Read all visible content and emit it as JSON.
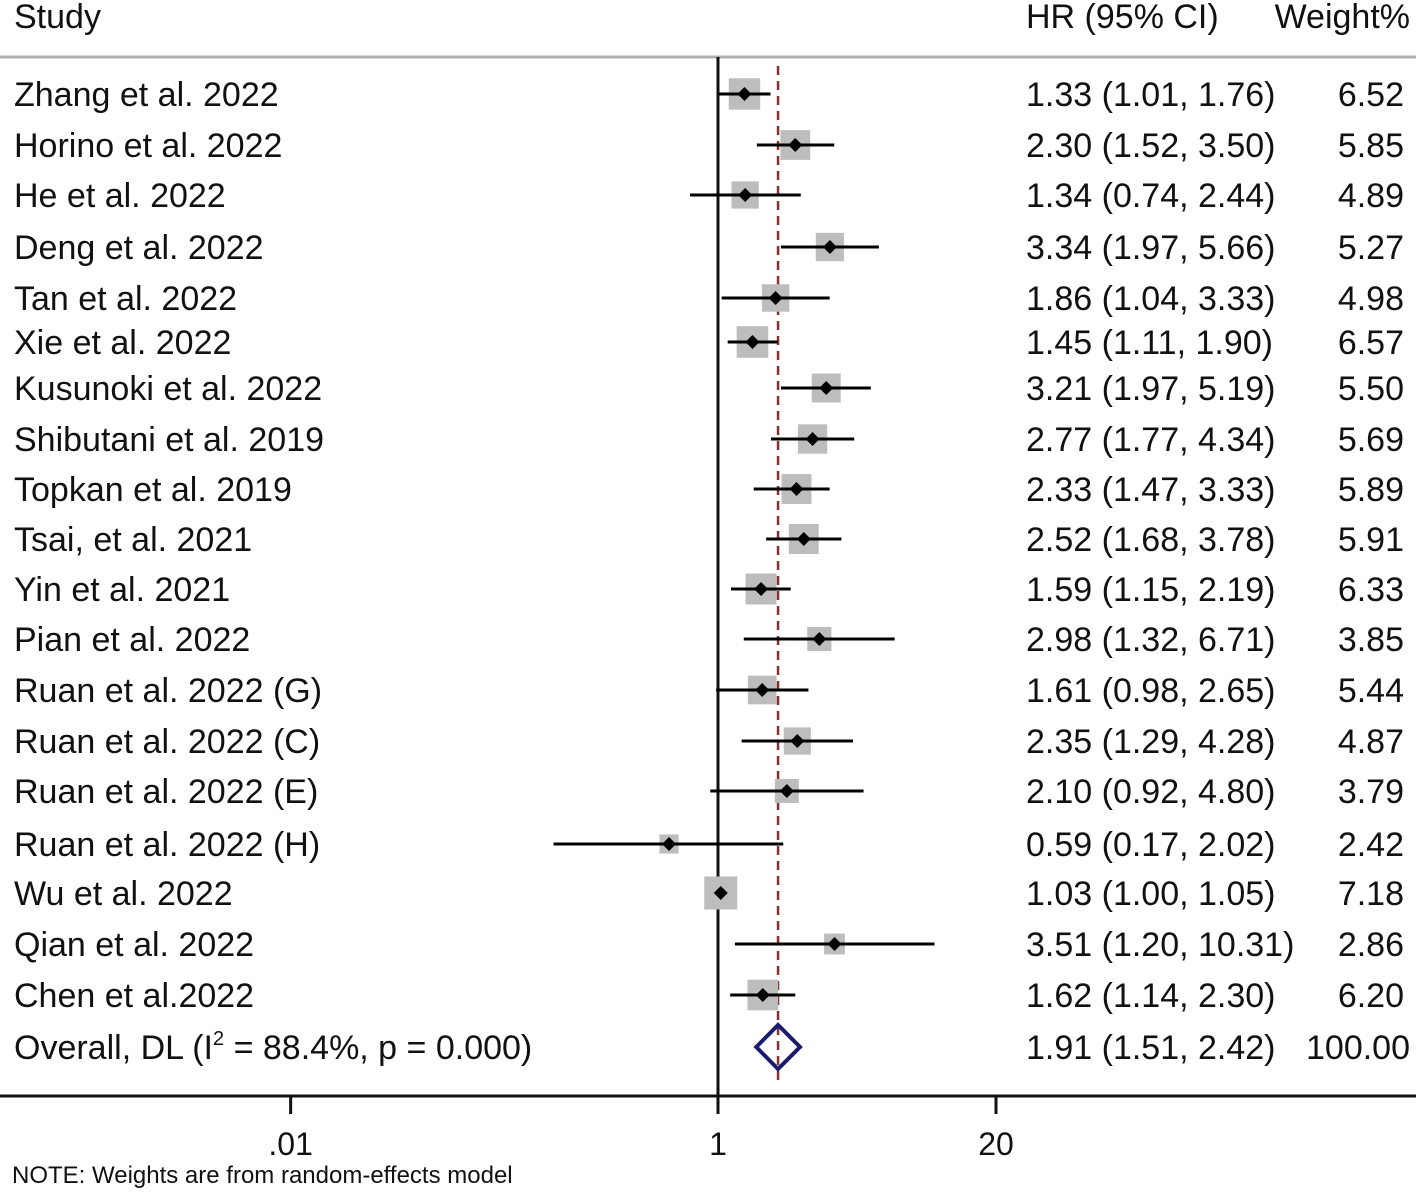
{
  "chart_data": {
    "type": "forest",
    "headers": {
      "study": "Study",
      "hr": "HR (95% CI)",
      "weight": "Weight%"
    },
    "x_scale": "log",
    "xlim": [
      0.005,
      200
    ],
    "x_ticks": [
      {
        "value": 0.01,
        "label": ".01"
      },
      {
        "value": 1,
        "label": "1"
      },
      {
        "value": 20,
        "label": "20"
      }
    ],
    "reference_line": 1,
    "pooled_line": 1.91,
    "studies": [
      {
        "name": "Zhang et al. 2022",
        "hr": 1.33,
        "lo": 1.01,
        "hi": 1.76,
        "ci_text": "1.33 (1.01, 1.76)",
        "weight": "6.52"
      },
      {
        "name": "Horino et al. 2022",
        "hr": 2.3,
        "lo": 1.52,
        "hi": 3.5,
        "ci_text": "2.30 (1.52, 3.50)",
        "weight": "5.85"
      },
      {
        "name": "He et al. 2022",
        "hr": 1.34,
        "lo": 0.74,
        "hi": 2.44,
        "ci_text": "1.34 (0.74, 2.44)",
        "weight": "4.89"
      },
      {
        "name": "Deng et al. 2022",
        "hr": 3.34,
        "lo": 1.97,
        "hi": 5.66,
        "ci_text": "3.34 (1.97, 5.66)",
        "weight": "5.27"
      },
      {
        "name": "Tan et al. 2022",
        "hr": 1.86,
        "lo": 1.04,
        "hi": 3.33,
        "ci_text": "1.86 (1.04, 3.33)",
        "weight": "4.98"
      },
      {
        "name": "Xie et al. 2022",
        "hr": 1.45,
        "lo": 1.11,
        "hi": 1.9,
        "ci_text": "1.45 (1.11, 1.90)",
        "weight": "6.57"
      },
      {
        "name": "Kusunoki et al. 2022",
        "hr": 3.21,
        "lo": 1.97,
        "hi": 5.19,
        "ci_text": "3.21 (1.97, 5.19)",
        "weight": "5.50"
      },
      {
        "name": "Shibutani et al. 2019",
        "hr": 2.77,
        "lo": 1.77,
        "hi": 4.34,
        "ci_text": "2.77 (1.77, 4.34)",
        "weight": "5.69"
      },
      {
        "name": "Topkan et al. 2019",
        "hr": 2.33,
        "lo": 1.47,
        "hi": 3.33,
        "ci_text": "2.33 (1.47, 3.33)",
        "weight": "5.89"
      },
      {
        "name": "Tsai, et al. 2021",
        "hr": 2.52,
        "lo": 1.68,
        "hi": 3.78,
        "ci_text": "2.52 (1.68, 3.78)",
        "weight": "5.91"
      },
      {
        "name": "Yin et al. 2021",
        "hr": 1.59,
        "lo": 1.15,
        "hi": 2.19,
        "ci_text": "1.59 (1.15, 2.19)",
        "weight": "6.33"
      },
      {
        "name": "Pian et al. 2022",
        "hr": 2.98,
        "lo": 1.32,
        "hi": 6.71,
        "ci_text": "2.98 (1.32, 6.71)",
        "weight": "3.85"
      },
      {
        "name": "Ruan et al. 2022 (G)",
        "hr": 1.61,
        "lo": 0.98,
        "hi": 2.65,
        "ci_text": "1.61 (0.98, 2.65)",
        "weight": "5.44"
      },
      {
        "name": "Ruan et al. 2022 (C)",
        "hr": 2.35,
        "lo": 1.29,
        "hi": 4.28,
        "ci_text": "2.35 (1.29, 4.28)",
        "weight": "4.87"
      },
      {
        "name": "Ruan et al. 2022 (E)",
        "hr": 2.1,
        "lo": 0.92,
        "hi": 4.8,
        "ci_text": "2.10 (0.92, 4.80)",
        "weight": "3.79"
      },
      {
        "name": "Ruan et al. 2022 (H)",
        "hr": 0.59,
        "lo": 0.17,
        "hi": 2.02,
        "ci_text": "0.59 (0.17, 2.02)",
        "weight": "2.42"
      },
      {
        "name": "Wu et al. 2022",
        "hr": 1.03,
        "lo": 1.0,
        "hi": 1.05,
        "ci_text": "1.03 (1.00, 1.05)",
        "weight": "7.18"
      },
      {
        "name": "Qian et al. 2022",
        "hr": 3.51,
        "lo": 1.2,
        "hi": 10.31,
        "ci_text": "3.51 (1.20, 10.31)",
        "weight": "2.86"
      },
      {
        "name": "Chen et al.2022",
        "hr": 1.62,
        "lo": 1.14,
        "hi": 2.3,
        "ci_text": "1.62 (1.14, 2.30)",
        "weight": "6.20"
      }
    ],
    "overall": {
      "label_prefix": "Overall, DL (I",
      "label_sup": "2",
      "label_suffix": " = 88.4%, p = 0.000)",
      "hr": 1.91,
      "lo": 1.51,
      "hi": 2.42,
      "ci_text": "1.91 (1.51, 2.42)",
      "weight": "100.00"
    },
    "note": "NOTE: Weights are from random-effects model",
    "colors": {
      "box": "#bdbdbd",
      "marker": "#000000",
      "pooled_line": "#8b2e2e",
      "diamond": "#1c1c6e",
      "rule": "#b0b0b0"
    }
  }
}
